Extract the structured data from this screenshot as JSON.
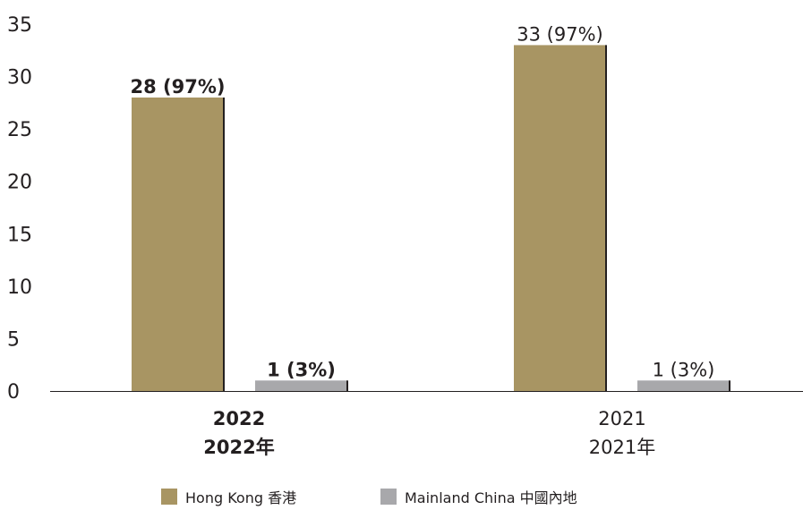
{
  "chart_data": {
    "type": "bar",
    "categories": [
      "2022",
      "2021"
    ],
    "category_labels": [
      {
        "line1": "2022",
        "line2": "2022年",
        "bold": true
      },
      {
        "line1": "2021",
        "line2": "2021年",
        "bold": false
      }
    ],
    "series": [
      {
        "name": "Hong Kong 香港",
        "color": "#a89563",
        "values": [
          28,
          33
        ],
        "data_labels": [
          "28 (97%)",
          "33 (97%)"
        ]
      },
      {
        "name": "Mainland China 中國內地",
        "color": "#a8a8ab",
        "values": [
          1,
          1
        ],
        "data_labels": [
          "1 (3%)",
          "1 (3%)"
        ]
      }
    ],
    "ylim": [
      0,
      35
    ],
    "yticks": [
      "0",
      "5",
      "10",
      "15",
      "20",
      "25",
      "30",
      "35"
    ],
    "grid": false,
    "legend_position": "bottom",
    "title": "",
    "xlabel": "",
    "ylabel": ""
  }
}
